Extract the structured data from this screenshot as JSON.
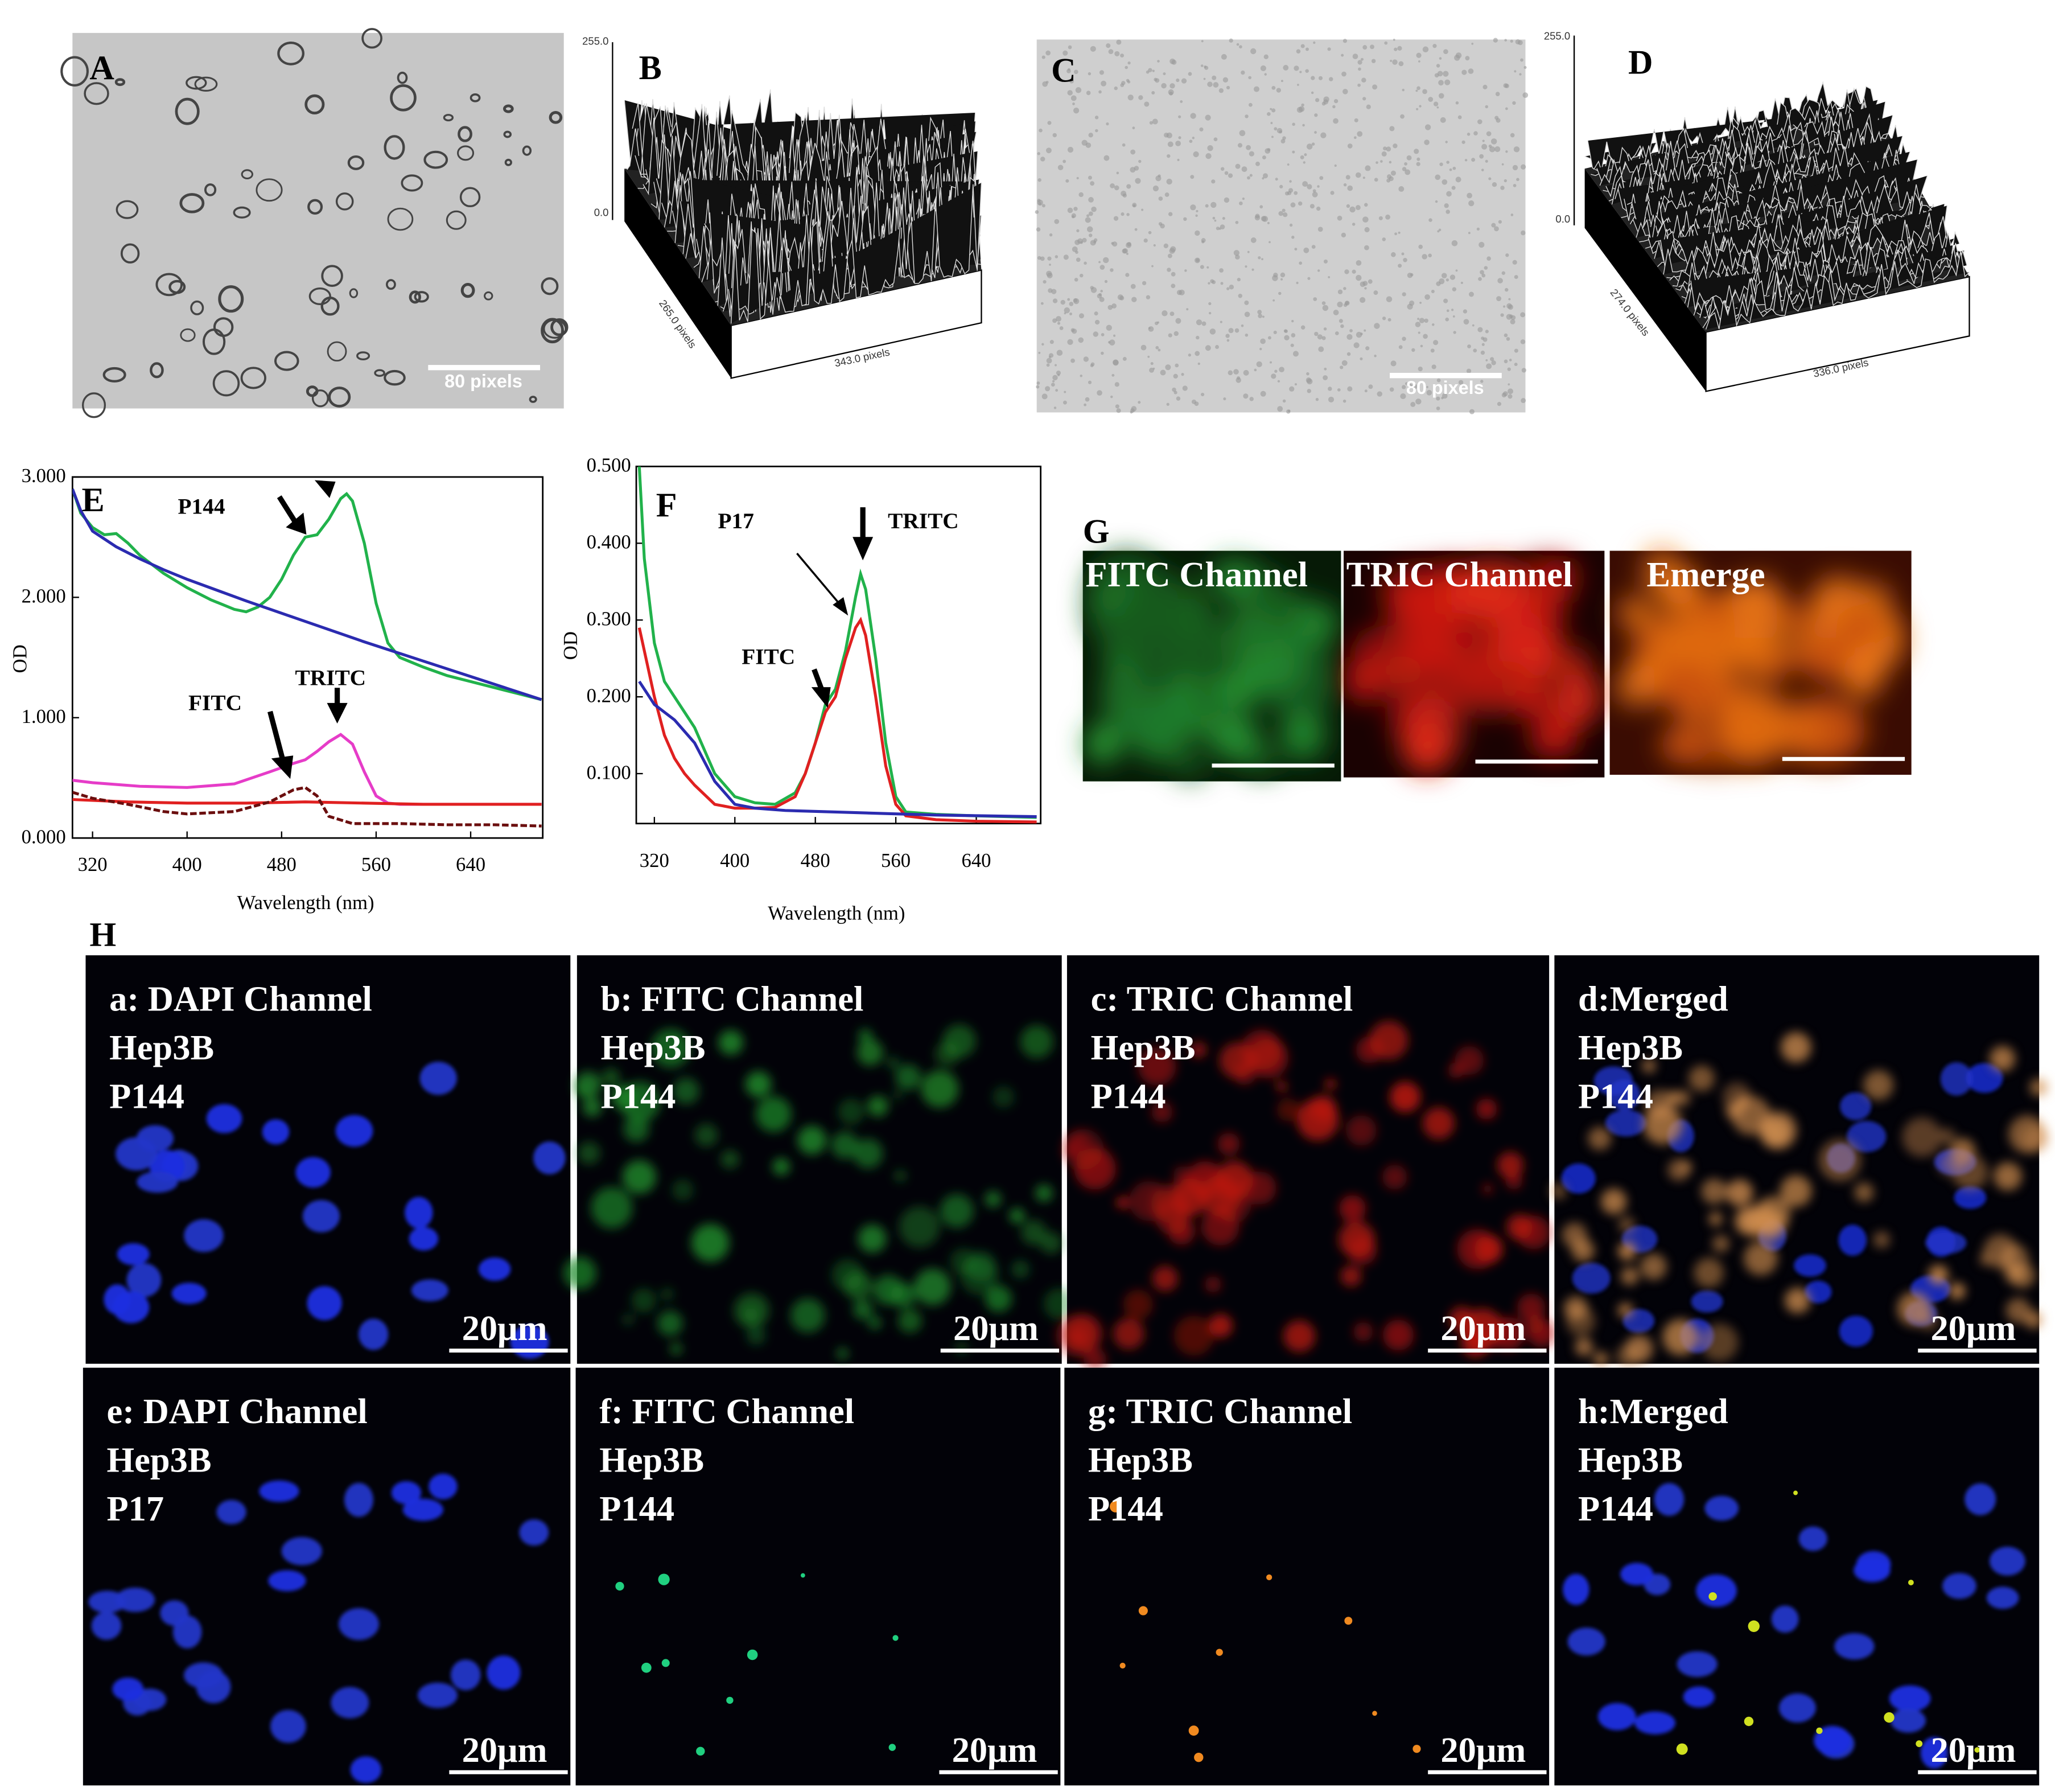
{
  "panels": {
    "A": {
      "label": "A",
      "scale": "80 pixels"
    },
    "B": {
      "label": "B",
      "z_max": "255.0",
      "z_min": "0.0",
      "y_size": "265.0 pixels",
      "x_size": "343.0 pixels"
    },
    "C": {
      "label": "C",
      "scale": "80 pixels"
    },
    "D": {
      "label": "D",
      "z_max": "255.0",
      "z_min": "0.0",
      "y_size": "274.0 pixels",
      "x_size": "336.0 pixels"
    }
  },
  "chart_data": [
    {
      "type": "line",
      "panel_label": "E",
      "xlabel": "Wavelength (nm)",
      "ylabel": "OD",
      "annotations": [
        "P144",
        "FITC",
        "TRITC"
      ],
      "xlim": [
        303,
        701
      ],
      "ylim": [
        0,
        3
      ],
      "xticks": [
        320,
        400,
        480,
        560,
        640
      ],
      "yticks": [
        {
          "value": 0,
          "label": "0.000"
        },
        {
          "value": 1,
          "label": "1.000"
        },
        {
          "value": 2,
          "label": "2.000"
        },
        {
          "value": 3,
          "label": "3.000"
        }
      ],
      "series": [
        {
          "color": "#21b24b",
          "x": [
            303,
            310,
            320,
            330,
            340,
            350,
            360,
            380,
            400,
            420,
            440,
            450,
            460,
            470,
            480,
            490,
            500,
            510,
            520,
            530,
            535,
            540,
            550,
            560,
            570,
            580,
            600,
            620,
            640,
            660,
            680,
            700
          ],
          "values": [
            2.9,
            2.7,
            2.58,
            2.52,
            2.53,
            2.45,
            2.35,
            2.2,
            2.08,
            1.98,
            1.9,
            1.88,
            1.92,
            2.0,
            2.15,
            2.35,
            2.5,
            2.52,
            2.65,
            2.82,
            2.86,
            2.8,
            2.45,
            1.95,
            1.62,
            1.5,
            1.42,
            1.35,
            1.3,
            1.25,
            1.2,
            1.15
          ]
        },
        {
          "color": "#2b2bb0",
          "x": [
            303,
            310,
            320,
            340,
            360,
            380,
            400,
            450,
            500,
            550,
            600,
            650,
            700
          ],
          "values": [
            2.9,
            2.72,
            2.55,
            2.42,
            2.32,
            2.23,
            2.15,
            1.97,
            1.8,
            1.63,
            1.47,
            1.31,
            1.15
          ]
        },
        {
          "color": "#e63cc8",
          "x": [
            303,
            320,
            360,
            400,
            440,
            470,
            490,
            500,
            510,
            520,
            530,
            540,
            550,
            560,
            570,
            580,
            620,
            660,
            700
          ],
          "values": [
            0.48,
            0.46,
            0.43,
            0.42,
            0.45,
            0.55,
            0.62,
            0.65,
            0.72,
            0.8,
            0.86,
            0.78,
            0.55,
            0.35,
            0.29,
            0.28,
            0.28,
            0.28,
            0.28
          ]
        },
        {
          "color": "#e02020",
          "x": [
            303,
            350,
            400,
            450,
            500,
            550,
            600,
            650,
            700
          ],
          "values": [
            0.32,
            0.3,
            0.29,
            0.29,
            0.3,
            0.29,
            0.28,
            0.28,
            0.28
          ]
        },
        {
          "color": "#6b0e0e",
          "dashed": true,
          "x": [
            303,
            320,
            350,
            380,
            400,
            440,
            470,
            490,
            500,
            510,
            520,
            540,
            580,
            620,
            660,
            700
          ],
          "values": [
            0.38,
            0.33,
            0.28,
            0.22,
            0.2,
            0.22,
            0.3,
            0.4,
            0.42,
            0.35,
            0.18,
            0.12,
            0.12,
            0.11,
            0.11,
            0.1
          ]
        }
      ]
    },
    {
      "type": "line",
      "panel_label": "F",
      "xlabel": "Wavelength (nm)",
      "ylabel": "OD",
      "annotations": [
        "P17",
        "FITC",
        "TRITC"
      ],
      "xlim": [
        302,
        704
      ],
      "ylim": [
        0.035,
        0.5
      ],
      "xticks": [
        320,
        400,
        480,
        560,
        640
      ],
      "yticks": [
        {
          "value": 0.1,
          "label": "0.100"
        },
        {
          "value": 0.2,
          "label": "0.200"
        },
        {
          "value": 0.3,
          "label": "0.300"
        },
        {
          "value": 0.4,
          "label": "0.400"
        },
        {
          "value": 0.5,
          "label": "0.500"
        }
      ],
      "series": [
        {
          "color": "#21b24b",
          "x": [
            305,
            310,
            320,
            330,
            340,
            350,
            360,
            380,
            400,
            420,
            440,
            460,
            470,
            480,
            490,
            500,
            510,
            520,
            525,
            530,
            540,
            550,
            560,
            570,
            600,
            640,
            700
          ],
          "values": [
            0.5,
            0.38,
            0.27,
            0.22,
            0.2,
            0.18,
            0.16,
            0.1,
            0.07,
            0.062,
            0.06,
            0.075,
            0.1,
            0.14,
            0.19,
            0.21,
            0.26,
            0.33,
            0.36,
            0.34,
            0.25,
            0.14,
            0.07,
            0.05,
            0.047,
            0.045,
            0.043
          ]
        },
        {
          "color": "#e02020",
          "x": [
            305,
            320,
            330,
            340,
            350,
            360,
            380,
            400,
            420,
            440,
            460,
            470,
            480,
            490,
            500,
            510,
            520,
            525,
            530,
            540,
            550,
            560,
            570,
            600,
            640,
            700
          ],
          "values": [
            0.29,
            0.2,
            0.15,
            0.12,
            0.1,
            0.085,
            0.06,
            0.055,
            0.055,
            0.056,
            0.07,
            0.1,
            0.14,
            0.18,
            0.2,
            0.25,
            0.29,
            0.3,
            0.28,
            0.2,
            0.11,
            0.06,
            0.045,
            0.04,
            0.038,
            0.037
          ]
        },
        {
          "color": "#2b2bb0",
          "x": [
            305,
            320,
            340,
            360,
            380,
            400,
            420,
            450,
            500,
            550,
            600,
            650,
            700
          ],
          "values": [
            0.22,
            0.19,
            0.17,
            0.14,
            0.09,
            0.06,
            0.055,
            0.052,
            0.05,
            0.048,
            0.046,
            0.045,
            0.044
          ]
        }
      ]
    }
  ],
  "G": {
    "label": "G",
    "channels": [
      "FITC Channel",
      "TRIC Channel",
      "Emerge"
    ]
  },
  "H": {
    "label": "H",
    "panels": [
      {
        "lines": [
          "a: DAPI Channel",
          "Hep3B",
          "P144"
        ],
        "scale": "20μm"
      },
      {
        "lines": [
          "b: FITC Channel",
          "Hep3B",
          "P144"
        ],
        "scale": "20μm"
      },
      {
        "lines": [
          "c: TRIC Channel",
          "Hep3B",
          "P144"
        ],
        "scale": "20μm"
      },
      {
        "lines": [
          "d:Merged",
          "Hep3B",
          "P144"
        ],
        "scale": "20μm"
      },
      {
        "lines": [
          "e: DAPI Channel",
          "Hep3B",
          "P17"
        ],
        "scale": "20μm"
      },
      {
        "lines": [
          "f: FITC Channel",
          "Hep3B",
          "P144"
        ],
        "scale": "20μm"
      },
      {
        "lines": [
          "g: TRIC Channel",
          "Hep3B",
          "P144"
        ],
        "scale": "20μm"
      },
      {
        "lines": [
          "h:Merged",
          "Hep3B",
          "P144"
        ],
        "scale": "20μm"
      }
    ]
  }
}
